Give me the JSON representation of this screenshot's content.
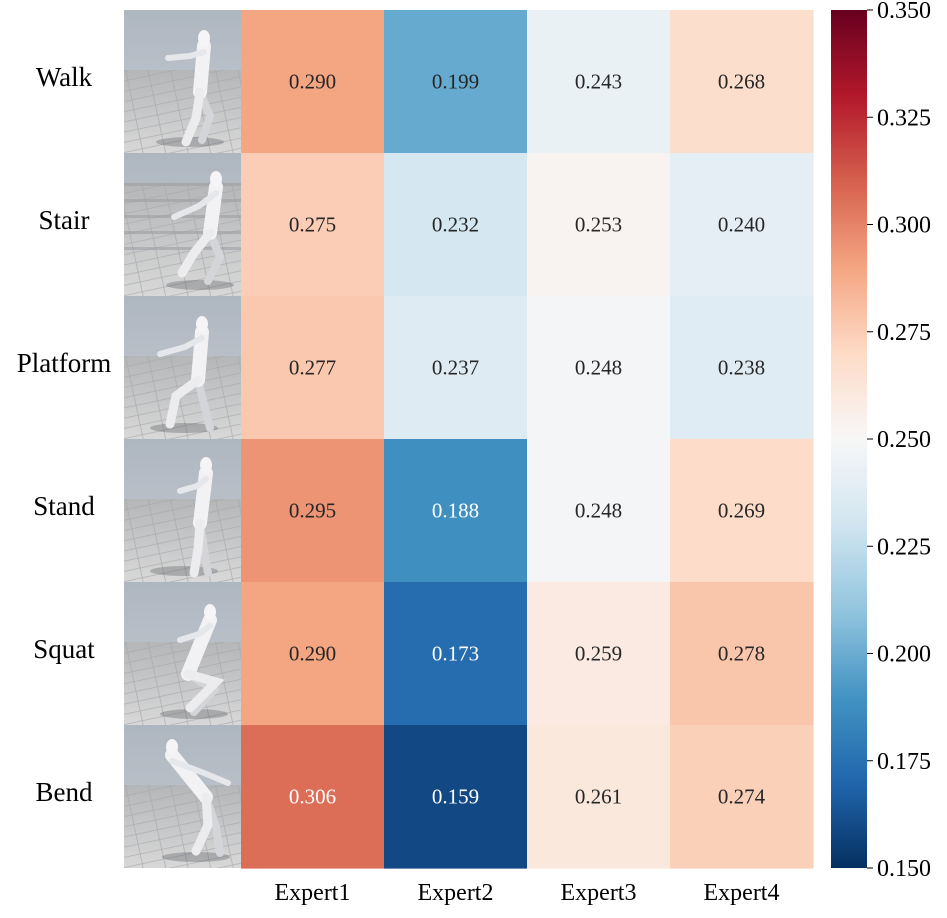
{
  "chart_data": {
    "type": "heatmap",
    "title": "",
    "xlabel": "",
    "ylabel": "",
    "rows": [
      "Walk",
      "Stair",
      "Platform",
      "Stand",
      "Squat",
      "Bend"
    ],
    "columns": [
      "Expert1",
      "Expert2",
      "Expert3",
      "Expert4"
    ],
    "values": [
      [
        0.29,
        0.199,
        0.243,
        0.268
      ],
      [
        0.275,
        0.232,
        0.253,
        0.24
      ],
      [
        0.277,
        0.237,
        0.248,
        0.238
      ],
      [
        0.295,
        0.188,
        0.248,
        0.269
      ],
      [
        0.29,
        0.173,
        0.259,
        0.278
      ],
      [
        0.306,
        0.159,
        0.261,
        0.274
      ]
    ],
    "value_labels": [
      [
        "0.290",
        "0.199",
        "0.243",
        "0.268"
      ],
      [
        "0.275",
        "0.232",
        "0.253",
        "0.240"
      ],
      [
        "0.277",
        "0.237",
        "0.248",
        "0.238"
      ],
      [
        "0.295",
        "0.188",
        "0.248",
        "0.269"
      ],
      [
        "0.290",
        "0.173",
        "0.259",
        "0.278"
      ],
      [
        "0.306",
        "0.159",
        "0.261",
        "0.274"
      ]
    ],
    "colorbar": {
      "colormap": "RdBu_r",
      "vmin": 0.15,
      "vmax": 0.35,
      "ticks": [
        0.15,
        0.175,
        0.2,
        0.225,
        0.25,
        0.275,
        0.3,
        0.325,
        0.35
      ],
      "tick_labels": [
        "0.150",
        "0.175",
        "0.200",
        "0.225",
        "0.250",
        "0.275",
        "0.300",
        "0.325",
        "0.350"
      ]
    },
    "row_thumbnails": [
      "humanoid-walk-thumbnail",
      "humanoid-stair-thumbnail",
      "humanoid-platform-thumbnail",
      "humanoid-stand-thumbnail",
      "humanoid-squat-thumbnail",
      "humanoid-bend-thumbnail"
    ]
  }
}
